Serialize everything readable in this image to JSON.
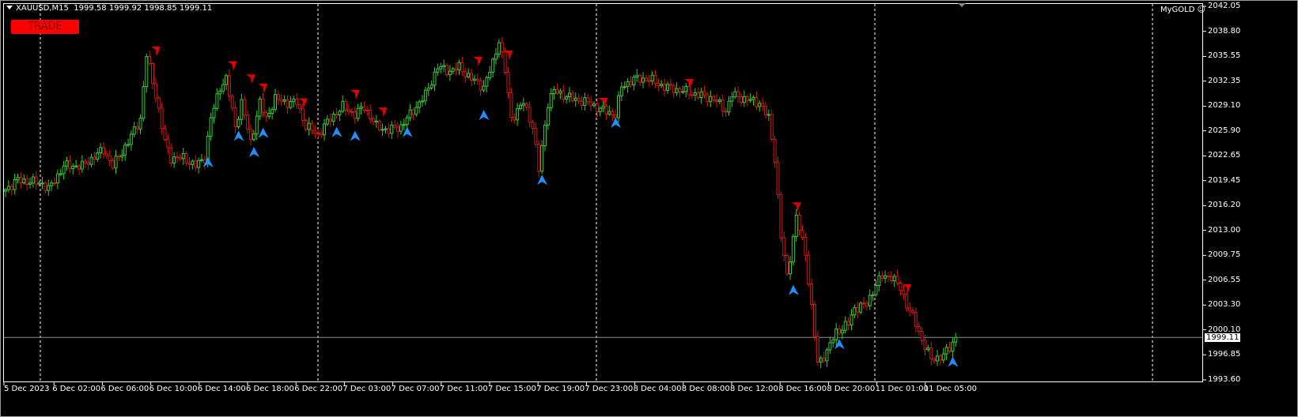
{
  "header": {
    "symbol": "XAUUSD,M15",
    "ohlc": "1999.58 1999.92 1998.85 1999.11"
  },
  "trade_button": {
    "label": "TRADE"
  },
  "indicator": {
    "label": "MyGOLD",
    "icon": "smiley-icon"
  },
  "colors": {
    "background": "#000000",
    "bull": "#32cd32",
    "bear": "#d01818",
    "buy_arrow": "#1e90ff",
    "sell_arrow": "#e00000",
    "bid_line": "#8a8a8a",
    "grid": "#ffffff"
  },
  "chart_data": {
    "type": "candlestick",
    "symbol": "XAUUSD",
    "timeframe": "M15",
    "ylim": [
      1993.6,
      2042.05
    ],
    "y_ticks": [
      "2042.05",
      "2038.80",
      "2035.55",
      "2032.35",
      "2029.10",
      "2025.90",
      "2022.65",
      "2019.45",
      "2016.20",
      "2013.00",
      "2009.75",
      "2006.55",
      "2003.30",
      "2000.10",
      "1996.85",
      "1993.60"
    ],
    "x_ticks": [
      "5 Dec 2023",
      "6 Dec 02:00",
      "6 Dec 06:00",
      "6 Dec 10:00",
      "6 Dec 14:00",
      "6 Dec 18:00",
      "6 Dec 22:00",
      "7 Dec 03:00",
      "7 Dec 07:00",
      "7 Dec 11:00",
      "7 Dec 15:00",
      "7 Dec 19:00",
      "7 Dec 23:00",
      "8 Dec 04:00",
      "8 Dec 08:00",
      "8 Dec 12:00",
      "8 Dec 16:00",
      "8 Dec 20:00",
      "11 Dec 01:00",
      "11 Dec 05:00"
    ],
    "bid": "1999.11",
    "close_path": [
      [
        0,
        2018.28
      ],
      [
        4,
        2019.51
      ],
      [
        12,
        2019.1
      ],
      [
        14,
        2018.28
      ],
      [
        19,
        2021.35
      ],
      [
        25,
        2021.35
      ],
      [
        30,
        2022.89
      ],
      [
        32,
        2023.4
      ],
      [
        35,
        2021.35
      ],
      [
        40,
        2024.43
      ],
      [
        44,
        2027.5
      ],
      [
        46,
        2035.7
      ],
      [
        49,
        2030.57
      ],
      [
        52,
        2024.43
      ],
      [
        54,
        2022.38
      ],
      [
        58,
        2022.38
      ],
      [
        62,
        2021.35
      ],
      [
        65,
        2022.38
      ],
      [
        67,
        2027.5
      ],
      [
        70,
        2031.6
      ],
      [
        72,
        2032.62
      ],
      [
        75,
        2026.48
      ],
      [
        77,
        2029.55
      ],
      [
        80,
        2024.43
      ],
      [
        83,
        2029.55
      ],
      [
        85,
        2027.5
      ],
      [
        88,
        2030.06
      ],
      [
        92,
        2029.55
      ],
      [
        95,
        2029.55
      ],
      [
        98,
        2026.48
      ],
      [
        102,
        2025.45
      ],
      [
        106,
        2027.5
      ],
      [
        110,
        2029.04
      ],
      [
        114,
        2028.01
      ],
      [
        117,
        2029.04
      ],
      [
        121,
        2026.48
      ],
      [
        125,
        2025.96
      ],
      [
        129,
        2026.48
      ],
      [
        133,
        2028.53
      ],
      [
        137,
        2030.57
      ],
      [
        141,
        2034.16
      ],
      [
        145,
        2033.65
      ],
      [
        148,
        2034.16
      ],
      [
        152,
        2032.62
      ],
      [
        156,
        2031.6
      ],
      [
        159,
        2034.67
      ],
      [
        161,
        2037.75
      ],
      [
        163,
        2033.65
      ],
      [
        165,
        2027.5
      ],
      [
        169,
        2029.55
      ],
      [
        172,
        2026.48
      ],
      [
        174,
        2020.84
      ],
      [
        177,
        2029.55
      ],
      [
        179,
        2031.09
      ],
      [
        185,
        2030.06
      ],
      [
        190,
        2029.55
      ],
      [
        195,
        2028.53
      ],
      [
        199,
        2028.01
      ],
      [
        201,
        2031.6
      ],
      [
        205,
        2032.62
      ],
      [
        210,
        2032.62
      ],
      [
        215,
        2031.6
      ],
      [
        221,
        2031.09
      ],
      [
        226,
        2030.57
      ],
      [
        231,
        2030.06
      ],
      [
        235,
        2028.53
      ],
      [
        237,
        2030.57
      ],
      [
        241,
        2030.06
      ],
      [
        246,
        2029.55
      ],
      [
        249,
        2027.5
      ],
      [
        251,
        2022.38
      ],
      [
        253,
        2012.13
      ],
      [
        255,
        2007.01
      ],
      [
        257,
        2012.13
      ],
      [
        258,
        2014.69
      ],
      [
        261,
        2010.08
      ],
      [
        263,
        2002.91
      ],
      [
        265,
        1995.74
      ],
      [
        268,
        1997.27
      ],
      [
        271,
        1999.84
      ],
      [
        275,
        2000.86
      ],
      [
        277,
        2002.91
      ],
      [
        281,
        2003.42
      ],
      [
        284,
        2005.98
      ],
      [
        286,
        2007.01
      ],
      [
        289,
        2007.01
      ],
      [
        292,
        2005.47
      ],
      [
        294,
        2003.42
      ],
      [
        297,
        2000.86
      ],
      [
        299,
        1998.81
      ],
      [
        302,
        1996.25
      ],
      [
        306,
        1996.76
      ],
      [
        308,
        1997.78
      ],
      [
        310,
        1999.11
      ]
    ],
    "sell_signals": [
      [
        49,
        2036.2
      ],
      [
        74,
        2034.3
      ],
      [
        80,
        2032.6
      ],
      [
        84,
        2031.4
      ],
      [
        97,
        2029.5
      ],
      [
        114,
        2030.6
      ],
      [
        123,
        2028.3
      ],
      [
        154,
        2034.9
      ],
      [
        164,
        2035.7
      ],
      [
        195,
        2029.55
      ],
      [
        223,
        2032.0
      ],
      [
        258,
        2016.0
      ],
      [
        294,
        2005.4
      ]
    ],
    "buy_signals": [
      [
        66,
        2021.8
      ],
      [
        76,
        2025.2
      ],
      [
        81,
        2023.1
      ],
      [
        84,
        2025.6
      ],
      [
        108,
        2025.7
      ],
      [
        114,
        2025.2
      ],
      [
        131,
        2025.7
      ],
      [
        156,
        2027.9
      ],
      [
        175,
        2019.5
      ],
      [
        199,
        2026.9
      ],
      [
        257,
        2005.2
      ],
      [
        272,
        1998.2
      ],
      [
        309,
        1995.9
      ]
    ]
  }
}
